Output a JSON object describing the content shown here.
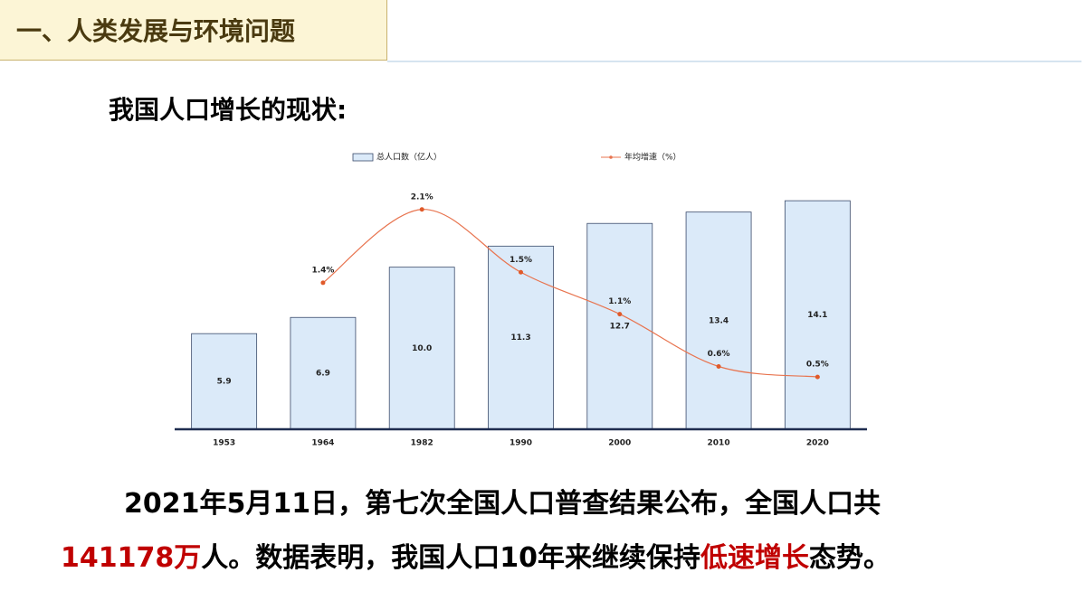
{
  "header": {
    "title": "一、人类发展与环境问题"
  },
  "subtitle": "我国人口增长的现状:",
  "chart_data": {
    "type": "bar-line",
    "categories": [
      "1953",
      "1964",
      "1982",
      "1990",
      "2000",
      "2010",
      "2020"
    ],
    "series": [
      {
        "name": "总人口数（亿人）",
        "type": "bar",
        "color": "#dbeaf9",
        "values": [
          5.9,
          6.9,
          10.0,
          11.3,
          12.7,
          13.4,
          14.1
        ],
        "value_labels": [
          "5.9",
          "6.9",
          "10.0",
          "11.3",
          "12.7",
          "13.4",
          "14.1"
        ]
      },
      {
        "name": "年均增速（%）",
        "type": "line",
        "axis": "y2",
        "color": "#e8744f",
        "values": [
          null,
          1.4,
          2.1,
          1.5,
          1.1,
          0.6,
          0.5
        ],
        "value_labels": [
          null,
          "1.4%",
          "2.1%",
          "1.5%",
          "1.1%",
          "0.6%",
          "0.5%"
        ]
      }
    ],
    "ylim": [
      0,
      15.5
    ],
    "y2lim": [
      0,
      2.4
    ],
    "legend": "top"
  },
  "paragraph": {
    "lines": [
      [
        {
          "text": "2021年5月11日，第七次全国人口普查结果公布，全国人口共",
          "color": "#000000"
        }
      ],
      [
        {
          "text": "141178万",
          "color": "#c00000"
        },
        {
          "text": "人。数据表明，我国人口10年来继续保持",
          "color": "#000000"
        },
        {
          "text": "低速增长",
          "color": "#c00000"
        },
        {
          "text": "态势。",
          "color": "#000000"
        }
      ]
    ]
  }
}
